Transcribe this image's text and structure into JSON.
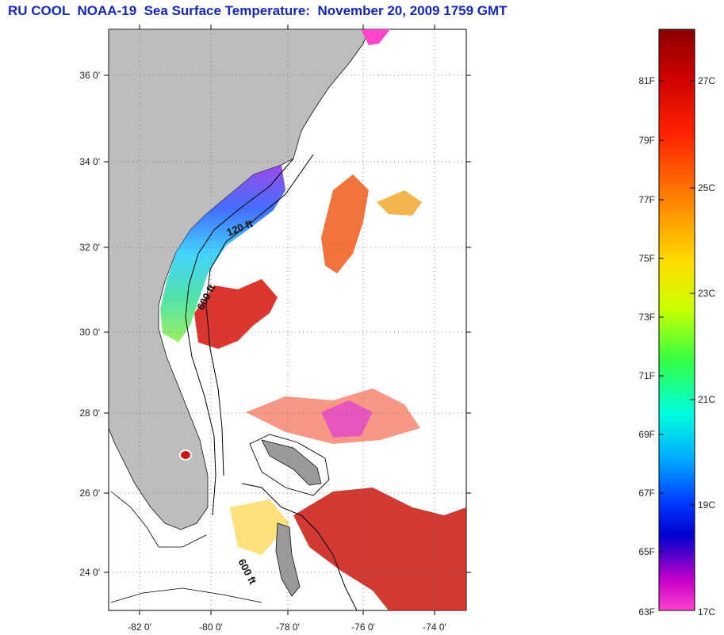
{
  "title": "RU COOL  NOAA-19  Sea Surface Temperature:  November 20, 2009 1759 GMT",
  "map": {
    "lat_labels": [
      "36 0'",
      "34 0'",
      "32 0'",
      "30 0'",
      "28 0'",
      "26 0'",
      "24 0'"
    ],
    "lon_labels": [
      "-82 0'",
      "-80 0'",
      "-78 0'",
      "-76 0'",
      "-74 0'"
    ],
    "contour_labels": [
      "120 ft",
      "600 ft",
      "600 ft"
    ],
    "colors": {
      "land": "#bdbdbd",
      "ocean": "#ffffff",
      "contour": "#000000"
    }
  },
  "colorbar": {
    "fahrenheit_labels": [
      "81F",
      "79F",
      "77F",
      "75F",
      "73F",
      "71F",
      "69F",
      "67F",
      "65F",
      "63F"
    ],
    "celsius_labels": [
      "27C",
      "25C",
      "23C",
      "21C",
      "19C",
      "17C"
    ],
    "range_c": [
      17,
      28.5
    ]
  }
}
